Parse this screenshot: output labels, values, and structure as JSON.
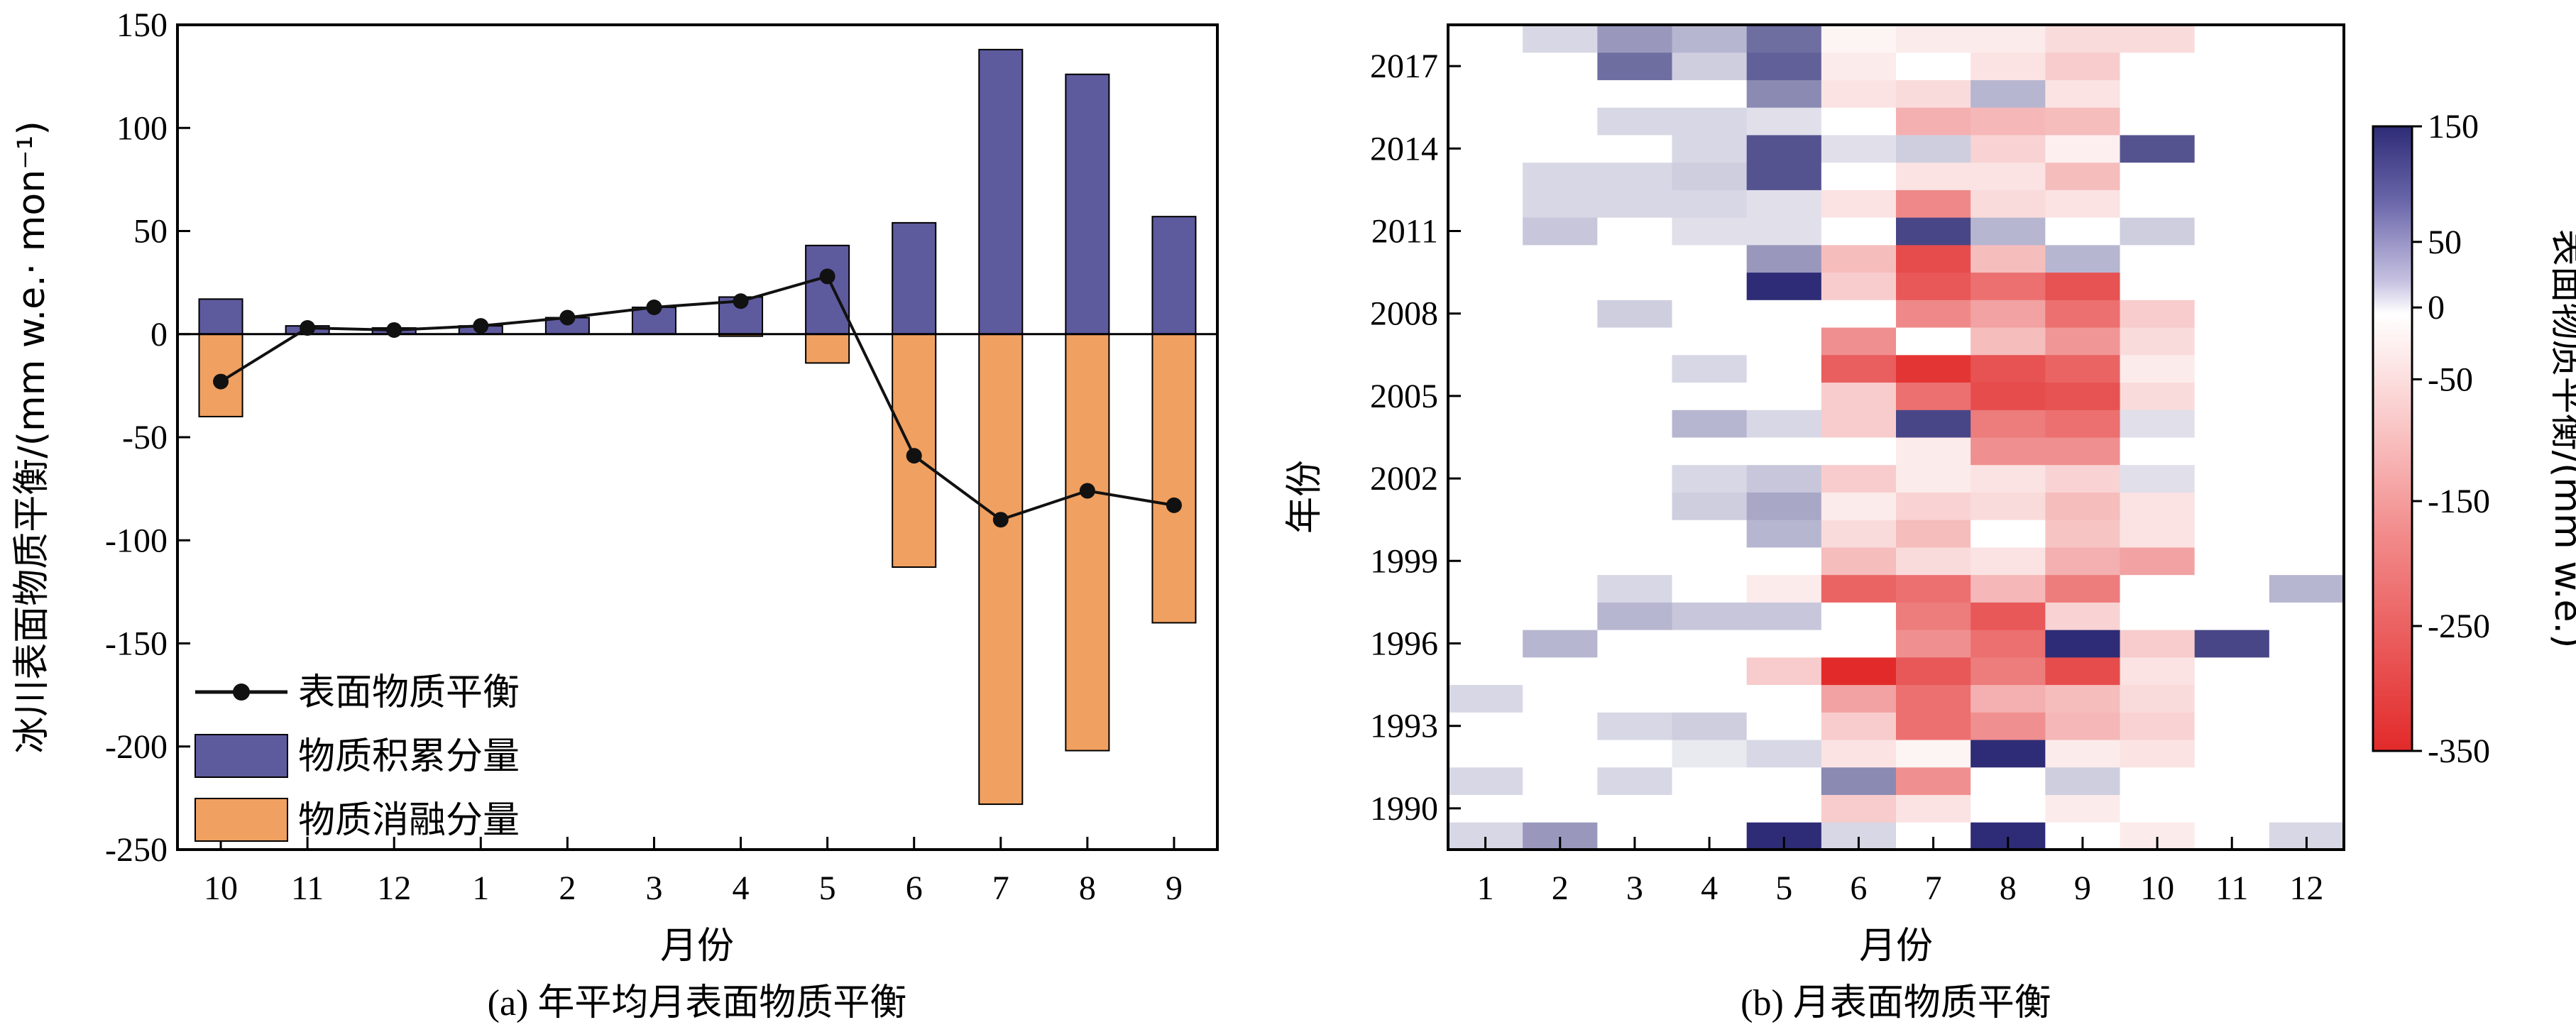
{
  "colors": {
    "accumulation": "#5e5a9e",
    "ablation": "#f0a060",
    "balance_line": "#111111",
    "heat_neg_strong": "#e22a2a",
    "heat_zero": "#ffffff",
    "heat_pos_strong": "#2e2c76"
  },
  "chart_data": [
    {
      "type": "bar",
      "caption": "(a) 年平均月表面物质平衡",
      "xlabel": "月份",
      "ylabel": "冰川表面物质平衡/(mm w.e.· mon⁻¹)",
      "categories": [
        "10",
        "11",
        "12",
        "1",
        "2",
        "3",
        "4",
        "5",
        "6",
        "7",
        "8",
        "9"
      ],
      "ylim": [
        -250,
        150
      ],
      "yticks": [
        "150",
        "100",
        "50",
        "0",
        "-50",
        "-100",
        "-150",
        "-200",
        "-250"
      ],
      "legend_position": "bottom-left",
      "series": [
        {
          "name": "表面物质平衡",
          "kind": "line",
          "values": [
            -23,
            3,
            2,
            4,
            8,
            13,
            16,
            28,
            -59,
            -90,
            -76,
            -83
          ]
        },
        {
          "name": "物质积累分量",
          "kind": "bar",
          "values": [
            17,
            4,
            3,
            4,
            8,
            13,
            18,
            43,
            54,
            138,
            126,
            57
          ]
        },
        {
          "name": "物质消融分量",
          "kind": "bar",
          "values": [
            -40,
            0,
            0,
            0,
            0,
            0,
            -1,
            -14,
            -113,
            -228,
            -202,
            -140
          ]
        }
      ]
    },
    {
      "type": "heatmap",
      "caption": "(b) 月表面物质平衡",
      "xlabel": "月份",
      "ylabel": "年份",
      "x": [
        "1",
        "2",
        "3",
        "4",
        "5",
        "6",
        "7",
        "8",
        "9",
        "10",
        "11",
        "12"
      ],
      "y_years": [
        1989,
        1990,
        1991,
        1992,
        1993,
        1994,
        1995,
        1996,
        1997,
        1998,
        1999,
        2000,
        2001,
        2002,
        2003,
        2004,
        2005,
        2006,
        2007,
        2008,
        2009,
        2010,
        2011,
        2012,
        2013,
        2014,
        2015,
        2016,
        2017,
        2018
      ],
      "yticks": [
        "1990",
        "1993",
        "1996",
        "1999",
        "2002",
        "2005",
        "2008",
        "2011",
        "2014",
        "2017"
      ],
      "values_by_year": [
        [
          20,
          60,
          0,
          0,
          140,
          20,
          0,
          140,
          0,
          -20,
          0,
          20
        ],
        [
          0,
          0,
          0,
          0,
          0,
          -60,
          -30,
          0,
          -20,
          0,
          0,
          0
        ],
        [
          20,
          0,
          20,
          0,
          0,
          70,
          -150,
          0,
          25,
          0,
          0,
          0
        ],
        [
          0,
          0,
          0,
          10,
          20,
          -30,
          -10,
          140,
          -20,
          -30,
          0,
          0
        ],
        [
          0,
          0,
          20,
          25,
          0,
          -60,
          -200,
          -150,
          -90,
          -50,
          0,
          0
        ],
        [
          20,
          0,
          0,
          0,
          0,
          -120,
          -200,
          -100,
          -80,
          -40,
          0,
          0
        ],
        [
          0,
          0,
          0,
          0,
          -60,
          -320,
          -240,
          -180,
          -260,
          -30,
          0,
          0
        ],
        [
          0,
          40,
          0,
          0,
          0,
          0,
          -150,
          -200,
          140,
          -60,
          120,
          0
        ],
        [
          0,
          0,
          40,
          30,
          30,
          0,
          -180,
          -240,
          -50,
          0,
          0,
          0
        ],
        [
          0,
          0,
          20,
          0,
          -20,
          -220,
          -200,
          -90,
          -180,
          0,
          0,
          40
        ],
        [
          0,
          0,
          0,
          0,
          0,
          -80,
          -40,
          -30,
          -100,
          -120,
          0,
          0
        ],
        [
          0,
          0,
          0,
          0,
          40,
          -40,
          -80,
          0,
          -70,
          -30,
          0,
          0
        ],
        [
          0,
          0,
          0,
          25,
          50,
          -20,
          -50,
          -40,
          -80,
          -30,
          0,
          0
        ],
        [
          0,
          0,
          0,
          20,
          30,
          -60,
          -20,
          -30,
          -50,
          15,
          0,
          0
        ],
        [
          0,
          0,
          0,
          0,
          0,
          0,
          -20,
          -150,
          -150,
          0,
          0,
          0
        ],
        [
          0,
          0,
          0,
          40,
          20,
          -60,
          120,
          -180,
          -200,
          15,
          0,
          0
        ],
        [
          0,
          0,
          0,
          0,
          0,
          -60,
          -200,
          -260,
          -250,
          -40,
          0,
          0
        ],
        [
          0,
          0,
          0,
          20,
          0,
          -230,
          -300,
          -250,
          -220,
          -20,
          0,
          0
        ],
        [
          0,
          0,
          0,
          0,
          0,
          -150,
          0,
          -80,
          -140,
          -40,
          0,
          0
        ],
        [
          0,
          0,
          25,
          0,
          0,
          0,
          -160,
          -120,
          -200,
          -60,
          0,
          0
        ],
        [
          0,
          0,
          0,
          0,
          140,
          -60,
          -240,
          -200,
          -250,
          0,
          0,
          0
        ],
        [
          0,
          0,
          0,
          0,
          60,
          -80,
          -260,
          -80,
          40,
          0,
          0,
          0
        ],
        [
          0,
          30,
          0,
          15,
          15,
          0,
          120,
          40,
          0,
          25,
          0,
          0
        ],
        [
          0,
          20,
          20,
          20,
          15,
          -30,
          -160,
          -40,
          -30,
          0,
          0,
          0
        ],
        [
          0,
          20,
          20,
          25,
          110,
          0,
          -30,
          -30,
          -80,
          0,
          0,
          0
        ],
        [
          0,
          0,
          0,
          20,
          110,
          15,
          25,
          -50,
          -15,
          110,
          0,
          0
        ],
        [
          0,
          0,
          20,
          20,
          15,
          0,
          -100,
          -90,
          -80,
          0,
          0,
          0
        ],
        [
          0,
          0,
          0,
          0,
          70,
          -30,
          -40,
          40,
          -30,
          0,
          0,
          0
        ],
        [
          0,
          0,
          90,
          25,
          100,
          -20,
          0,
          -30,
          -60,
          0,
          0,
          0
        ],
        [
          0,
          20,
          60,
          40,
          90,
          -10,
          -20,
          -20,
          -40,
          -40,
          0,
          0
        ]
      ],
      "colorbar": {
        "label": "表面物质平衡/(mm w.e.)",
        "ticks": [
          "150",
          "50",
          "0",
          "-50",
          "-150",
          "-250",
          "-350"
        ],
        "range": [
          -350,
          150
        ]
      }
    }
  ]
}
